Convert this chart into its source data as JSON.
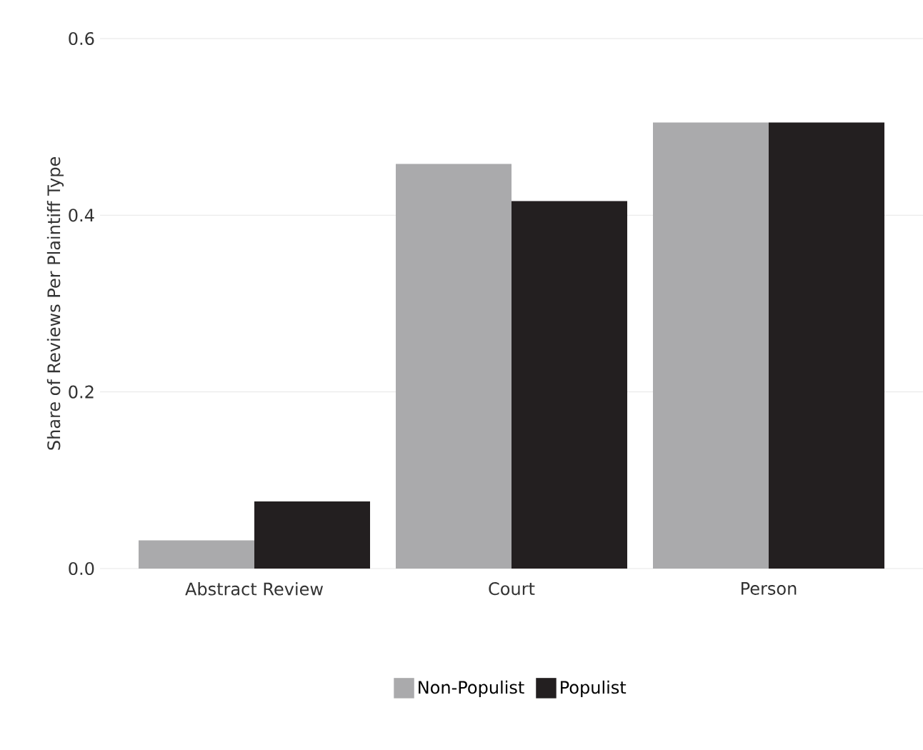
{
  "chart_data": {
    "type": "bar",
    "ylabel": "Share of Reviews Per Plaintiff Type",
    "categories": [
      "Abstract Review",
      "Court",
      "Person"
    ],
    "series": [
      {
        "name": "Non-Populist",
        "color": "#aaaaac",
        "values": [
          0.032,
          0.458,
          0.505
        ]
      },
      {
        "name": "Populist",
        "color": "#231f20",
        "values": [
          0.076,
          0.416,
          0.505
        ]
      }
    ],
    "ylim": [
      0,
      0.6
    ],
    "yticks": [
      {
        "value": 0,
        "label": "0.0"
      },
      0.2,
      0.4,
      0.6
    ],
    "grid": "y",
    "legend": "bottom"
  }
}
